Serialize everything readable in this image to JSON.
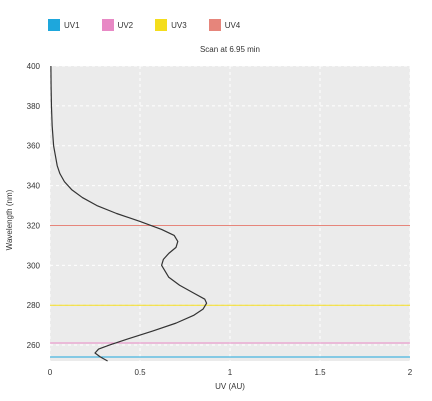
{
  "chart_data": {
    "type": "line",
    "title": "Scan at 6.95 min",
    "xlabel": "UV (AU)",
    "ylabel": "Wavelength (nm)",
    "xlim": [
      0,
      2
    ],
    "ylim": [
      252,
      400
    ],
    "xticks": [
      0,
      0.5,
      1,
      1.5,
      2
    ],
    "yticks": [
      260,
      280,
      300,
      320,
      340,
      360,
      380,
      400
    ],
    "grid": true,
    "legend_position": "top-left",
    "legend": [
      {
        "name": "UV1",
        "color": "#1ea7dc"
      },
      {
        "name": "UV2",
        "color": "#e889c5"
      },
      {
        "name": "UV3",
        "color": "#f4dd1c"
      },
      {
        "name": "UV4",
        "color": "#e6857b"
      }
    ],
    "reference_lines": [
      {
        "name": "UV1",
        "wavelength": 254,
        "color": "#1ea7dc"
      },
      {
        "name": "UV2",
        "wavelength": 261,
        "color": "#e889c5"
      },
      {
        "name": "UV3",
        "wavelength": 280,
        "color": "#f4dd1c"
      },
      {
        "name": "UV4",
        "wavelength": 320,
        "color": "#e6857b"
      }
    ],
    "series": [
      {
        "color": "#333333",
        "points": [
          {
            "wavelength": 252,
            "uv": 0.32
          },
          {
            "wavelength": 254,
            "uv": 0.28
          },
          {
            "wavelength": 256,
            "uv": 0.25
          },
          {
            "wavelength": 258,
            "uv": 0.27
          },
          {
            "wavelength": 260,
            "uv": 0.33
          },
          {
            "wavelength": 263,
            "uv": 0.43
          },
          {
            "wavelength": 267,
            "uv": 0.57
          },
          {
            "wavelength": 271,
            "uv": 0.7
          },
          {
            "wavelength": 275,
            "uv": 0.8
          },
          {
            "wavelength": 278,
            "uv": 0.85
          },
          {
            "wavelength": 281,
            "uv": 0.87
          },
          {
            "wavelength": 283,
            "uv": 0.86
          },
          {
            "wavelength": 286,
            "uv": 0.8
          },
          {
            "wavelength": 290,
            "uv": 0.72
          },
          {
            "wavelength": 294,
            "uv": 0.66
          },
          {
            "wavelength": 297,
            "uv": 0.64
          },
          {
            "wavelength": 300,
            "uv": 0.62
          },
          {
            "wavelength": 303,
            "uv": 0.63
          },
          {
            "wavelength": 306,
            "uv": 0.66
          },
          {
            "wavelength": 309,
            "uv": 0.7
          },
          {
            "wavelength": 312,
            "uv": 0.71
          },
          {
            "wavelength": 315,
            "uv": 0.69
          },
          {
            "wavelength": 318,
            "uv": 0.62
          },
          {
            "wavelength": 322,
            "uv": 0.5
          },
          {
            "wavelength": 326,
            "uv": 0.37
          },
          {
            "wavelength": 330,
            "uv": 0.26
          },
          {
            "wavelength": 334,
            "uv": 0.18
          },
          {
            "wavelength": 338,
            "uv": 0.12
          },
          {
            "wavelength": 342,
            "uv": 0.08
          },
          {
            "wavelength": 346,
            "uv": 0.055
          },
          {
            "wavelength": 350,
            "uv": 0.04
          },
          {
            "wavelength": 355,
            "uv": 0.03
          },
          {
            "wavelength": 360,
            "uv": 0.02
          },
          {
            "wavelength": 370,
            "uv": 0.012
          },
          {
            "wavelength": 380,
            "uv": 0.008
          },
          {
            "wavelength": 390,
            "uv": 0.006
          },
          {
            "wavelength": 400,
            "uv": 0.005
          }
        ]
      }
    ]
  }
}
